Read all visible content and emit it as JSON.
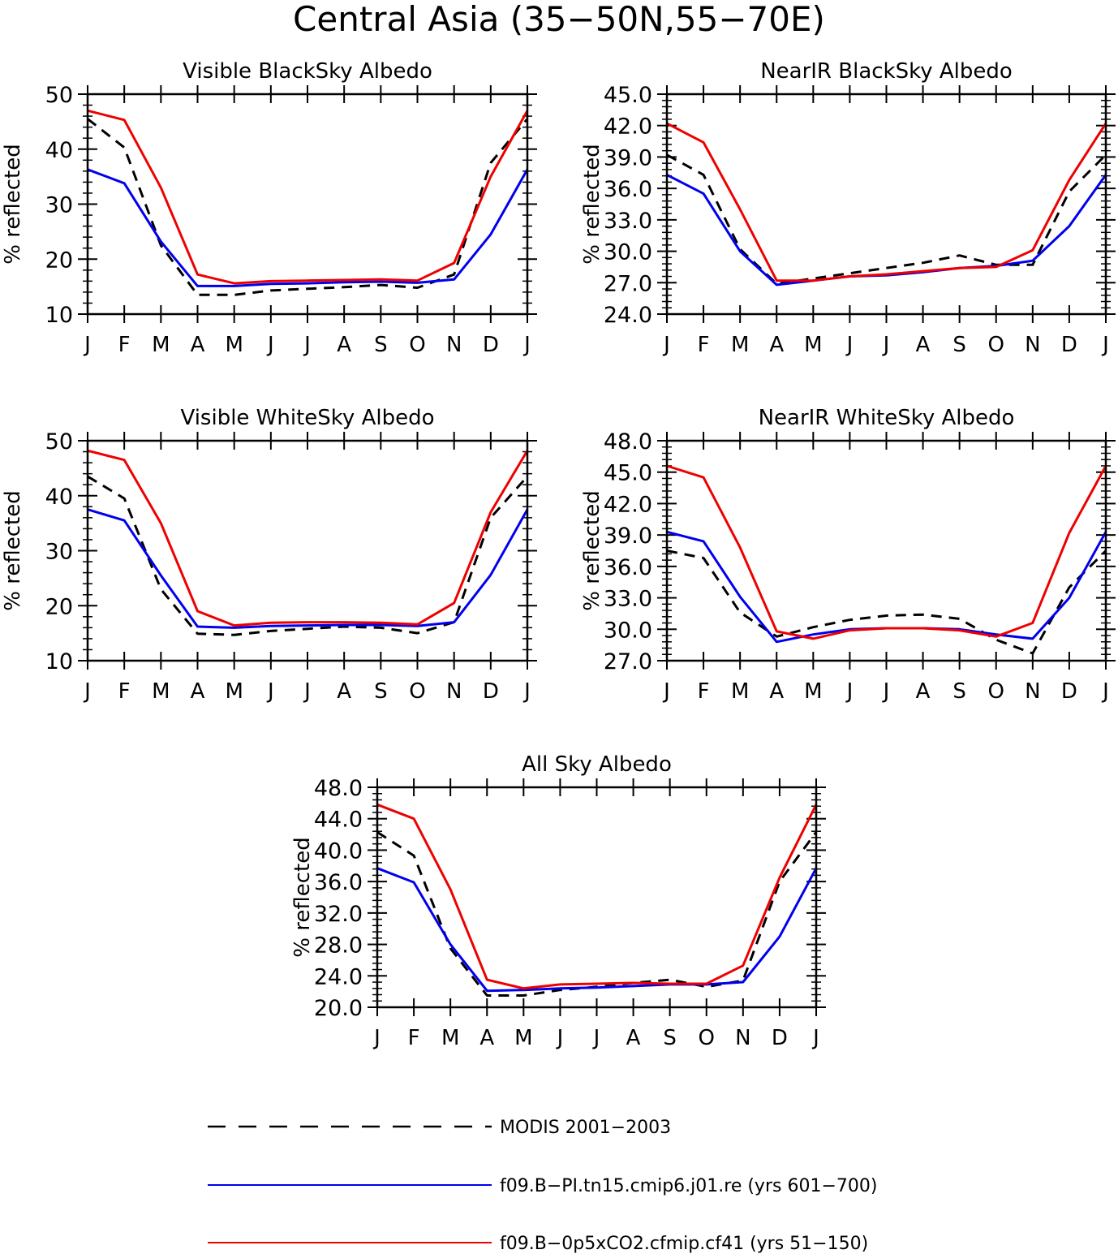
{
  "figure": {
    "title": "Central Asia (35−50N,55−70E)"
  },
  "legend": [
    {
      "label": "MODIS 2001−2003",
      "color": "#000000",
      "style": "dashed"
    },
    {
      "label": "f09.B−PI.tn15.cmip6.j01.re (yrs 601−700)",
      "color": "#0000ee",
      "style": "solid"
    },
    {
      "label": "f09.B−0p5xCO2.cfmip.cf41 (yrs 51−150)",
      "color": "#ee0000",
      "style": "solid"
    }
  ],
  "chart_data": [
    {
      "type": "line",
      "title": "Visible BlackSky Albedo",
      "ylabel": "% reflected",
      "xlabel": "",
      "categories": [
        "J",
        "F",
        "M",
        "A",
        "M",
        "J",
        "J",
        "A",
        "S",
        "O",
        "N",
        "D",
        "J"
      ],
      "ylim": [
        10,
        50
      ],
      "yticks": [
        "10",
        "20",
        "30",
        "40",
        "50"
      ],
      "series": [
        {
          "name": "MODIS 2001−2003",
          "color": "#000000",
          "dashed": true,
          "values": [
            45.5,
            40.3,
            22.5,
            13.5,
            13.5,
            14.3,
            14.6,
            14.9,
            15.3,
            14.8,
            17.2,
            37.5,
            45.5
          ]
        },
        {
          "name": "f09.B−PI.tn15.cmip6.j01.re (yrs 601−700)",
          "color": "#0000ee",
          "dashed": false,
          "values": [
            36.3,
            33.8,
            23.2,
            15.1,
            15.1,
            15.5,
            15.6,
            15.8,
            15.9,
            15.7,
            16.3,
            24.5,
            36.3
          ]
        },
        {
          "name": "f09.B−0p5xCO2.cfmip.cf41 (yrs 51−150)",
          "color": "#ee0000",
          "dashed": false,
          "values": [
            47.0,
            45.3,
            33.0,
            17.2,
            15.6,
            16.0,
            16.1,
            16.2,
            16.3,
            16.1,
            19.3,
            35.0,
            47.0
          ]
        }
      ]
    },
    {
      "type": "line",
      "title": "NearIR BlackSky Albedo",
      "ylabel": "% reflected",
      "xlabel": "",
      "categories": [
        "J",
        "F",
        "M",
        "A",
        "M",
        "J",
        "J",
        "A",
        "S",
        "O",
        "N",
        "D",
        "J"
      ],
      "ylim": [
        24,
        45
      ],
      "yticks": [
        "24.0",
        "27.0",
        "30.0",
        "33.0",
        "36.0",
        "39.0",
        "42.0",
        "45.0"
      ],
      "series": [
        {
          "name": "MODIS 2001−2003",
          "color": "#000000",
          "dashed": true,
          "values": [
            39.2,
            37.3,
            30.2,
            26.9,
            27.4,
            27.9,
            28.4,
            28.9,
            29.6,
            28.7,
            28.7,
            35.7,
            39.2
          ]
        },
        {
          "name": "f09.B−PI.tn15.cmip6.j01.re (yrs 601−700)",
          "color": "#0000ee",
          "dashed": false,
          "values": [
            37.3,
            35.5,
            30.0,
            26.8,
            27.2,
            27.6,
            27.7,
            28.0,
            28.4,
            28.6,
            29.1,
            32.4,
            37.3
          ]
        },
        {
          "name": "f09.B−0p5xCO2.cfmip.cf41 (yrs 51−150)",
          "color": "#ee0000",
          "dashed": false,
          "values": [
            42.2,
            40.4,
            34.0,
            27.2,
            27.2,
            27.6,
            27.8,
            28.1,
            28.4,
            28.5,
            30.1,
            36.8,
            42.2
          ]
        }
      ]
    },
    {
      "type": "line",
      "title": "Visible WhiteSky Albedo",
      "ylabel": "% reflected",
      "xlabel": "",
      "categories": [
        "J",
        "F",
        "M",
        "A",
        "M",
        "J",
        "J",
        "A",
        "S",
        "O",
        "N",
        "D",
        "J"
      ],
      "ylim": [
        10,
        50
      ],
      "yticks": [
        "10",
        "20",
        "30",
        "40",
        "50"
      ],
      "series": [
        {
          "name": "MODIS 2001−2003",
          "color": "#000000",
          "dashed": true,
          "values": [
            43.5,
            39.5,
            23.0,
            14.9,
            14.7,
            15.4,
            15.8,
            16.2,
            16.0,
            15.0,
            17.0,
            36.0,
            43.5
          ]
        },
        {
          "name": "f09.B−PI.tn15.cmip6.j01.re (yrs 601−700)",
          "color": "#0000ee",
          "dashed": false,
          "values": [
            37.5,
            35.5,
            25.5,
            16.2,
            16.0,
            16.3,
            16.4,
            16.5,
            16.5,
            16.3,
            17.0,
            25.6,
            37.5
          ]
        },
        {
          "name": "f09.B−0p5xCO2.cfmip.cf41 (yrs 51−150)",
          "color": "#ee0000",
          "dashed": false,
          "values": [
            48.2,
            46.5,
            35.0,
            19.0,
            16.4,
            16.9,
            17.0,
            17.0,
            16.9,
            16.6,
            20.5,
            37.0,
            48.2
          ]
        }
      ]
    },
    {
      "type": "line",
      "title": "NearIR WhiteSky Albedo",
      "ylabel": "% reflected",
      "xlabel": "",
      "categories": [
        "J",
        "F",
        "M",
        "A",
        "M",
        "J",
        "J",
        "A",
        "S",
        "O",
        "N",
        "D",
        "J"
      ],
      "ylim": [
        27,
        48
      ],
      "yticks": [
        "27.0",
        "30.0",
        "33.0",
        "36.0",
        "39.0",
        "42.0",
        "45.0",
        "48.0"
      ],
      "series": [
        {
          "name": "MODIS 2001−2003",
          "color": "#000000",
          "dashed": true,
          "values": [
            37.5,
            36.8,
            31.6,
            29.3,
            30.2,
            30.9,
            31.3,
            31.4,
            31.0,
            29.0,
            27.7,
            34.0,
            37.5
          ]
        },
        {
          "name": "f09.B−PI.tn15.cmip6.j01.re (yrs 601−700)",
          "color": "#0000ee",
          "dashed": false,
          "values": [
            39.3,
            38.4,
            33.1,
            28.8,
            29.5,
            30.0,
            30.1,
            30.1,
            30.0,
            29.5,
            29.1,
            33.0,
            39.3
          ]
        },
        {
          "name": "f09.B−0p5xCO2.cfmip.cf41 (yrs 51−150)",
          "color": "#ee0000",
          "dashed": false,
          "values": [
            45.6,
            44.5,
            37.8,
            29.8,
            29.1,
            29.9,
            30.1,
            30.1,
            29.9,
            29.3,
            30.6,
            39.2,
            45.6
          ]
        }
      ]
    },
    {
      "type": "line",
      "title": "All Sky Albedo",
      "ylabel": "% reflected",
      "xlabel": "",
      "categories": [
        "J",
        "F",
        "M",
        "A",
        "M",
        "J",
        "J",
        "A",
        "S",
        "O",
        "N",
        "D",
        "J"
      ],
      "ylim": [
        20,
        48
      ],
      "yticks": [
        "20.0",
        "24.0",
        "28.0",
        "32.0",
        "36.0",
        "40.0",
        "44.0",
        "48.0"
      ],
      "series": [
        {
          "name": "MODIS 2001−2003",
          "color": "#000000",
          "dashed": true,
          "values": [
            42.3,
            39.3,
            27.5,
            21.5,
            21.5,
            22.2,
            22.6,
            23.1,
            23.5,
            22.6,
            23.4,
            36.0,
            42.3
          ]
        },
        {
          "name": "f09.B−PI.tn15.cmip6.j01.re (yrs 601−700)",
          "color": "#0000ee",
          "dashed": false,
          "values": [
            37.7,
            35.9,
            28.0,
            22.1,
            22.2,
            22.4,
            22.5,
            22.7,
            22.9,
            22.9,
            23.2,
            29.0,
            37.7
          ]
        },
        {
          "name": "f09.B−0p5xCO2.cfmip.cf41 (yrs 51−150)",
          "color": "#ee0000",
          "dashed": false,
          "values": [
            45.8,
            44.0,
            35.0,
            23.5,
            22.4,
            22.9,
            23.0,
            23.1,
            23.0,
            23.0,
            25.3,
            36.5,
            45.8
          ]
        }
      ]
    }
  ]
}
